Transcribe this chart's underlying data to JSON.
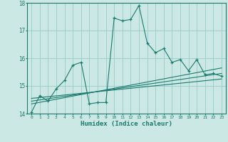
{
  "xlabel": "Humidex (Indice chaleur)",
  "bg_color": "#cce8e5",
  "grid_color": "#9ecfcc",
  "line_color": "#1a7a6e",
  "xlim": [
    -0.5,
    23.5
  ],
  "ylim": [
    14,
    18
  ],
  "yticks": [
    14,
    15,
    16,
    17,
    18
  ],
  "xticks": [
    0,
    1,
    2,
    3,
    4,
    5,
    6,
    7,
    8,
    9,
    10,
    11,
    12,
    13,
    14,
    15,
    16,
    17,
    18,
    19,
    20,
    21,
    22,
    23
  ],
  "series": [
    {
      "x": [
        0,
        1,
        2,
        3,
        4,
        5,
        6,
        7,
        8,
        9,
        10,
        11,
        12,
        13,
        14,
        15,
        16,
        17,
        18,
        19,
        20,
        21,
        22,
        23
      ],
      "y": [
        14.05,
        14.65,
        14.45,
        14.9,
        15.2,
        15.75,
        15.85,
        14.35,
        14.4,
        14.4,
        17.45,
        17.35,
        17.4,
        17.9,
        16.55,
        16.2,
        16.35,
        15.85,
        15.95,
        15.55,
        15.95,
        15.4,
        15.45,
        15.35
      ],
      "marker": "+"
    },
    {
      "x": [
        0,
        23
      ],
      "y": [
        14.55,
        15.25
      ],
      "marker": null
    },
    {
      "x": [
        0,
        23
      ],
      "y": [
        14.45,
        15.45
      ],
      "marker": null
    },
    {
      "x": [
        0,
        23
      ],
      "y": [
        14.35,
        15.65
      ],
      "marker": null
    }
  ]
}
